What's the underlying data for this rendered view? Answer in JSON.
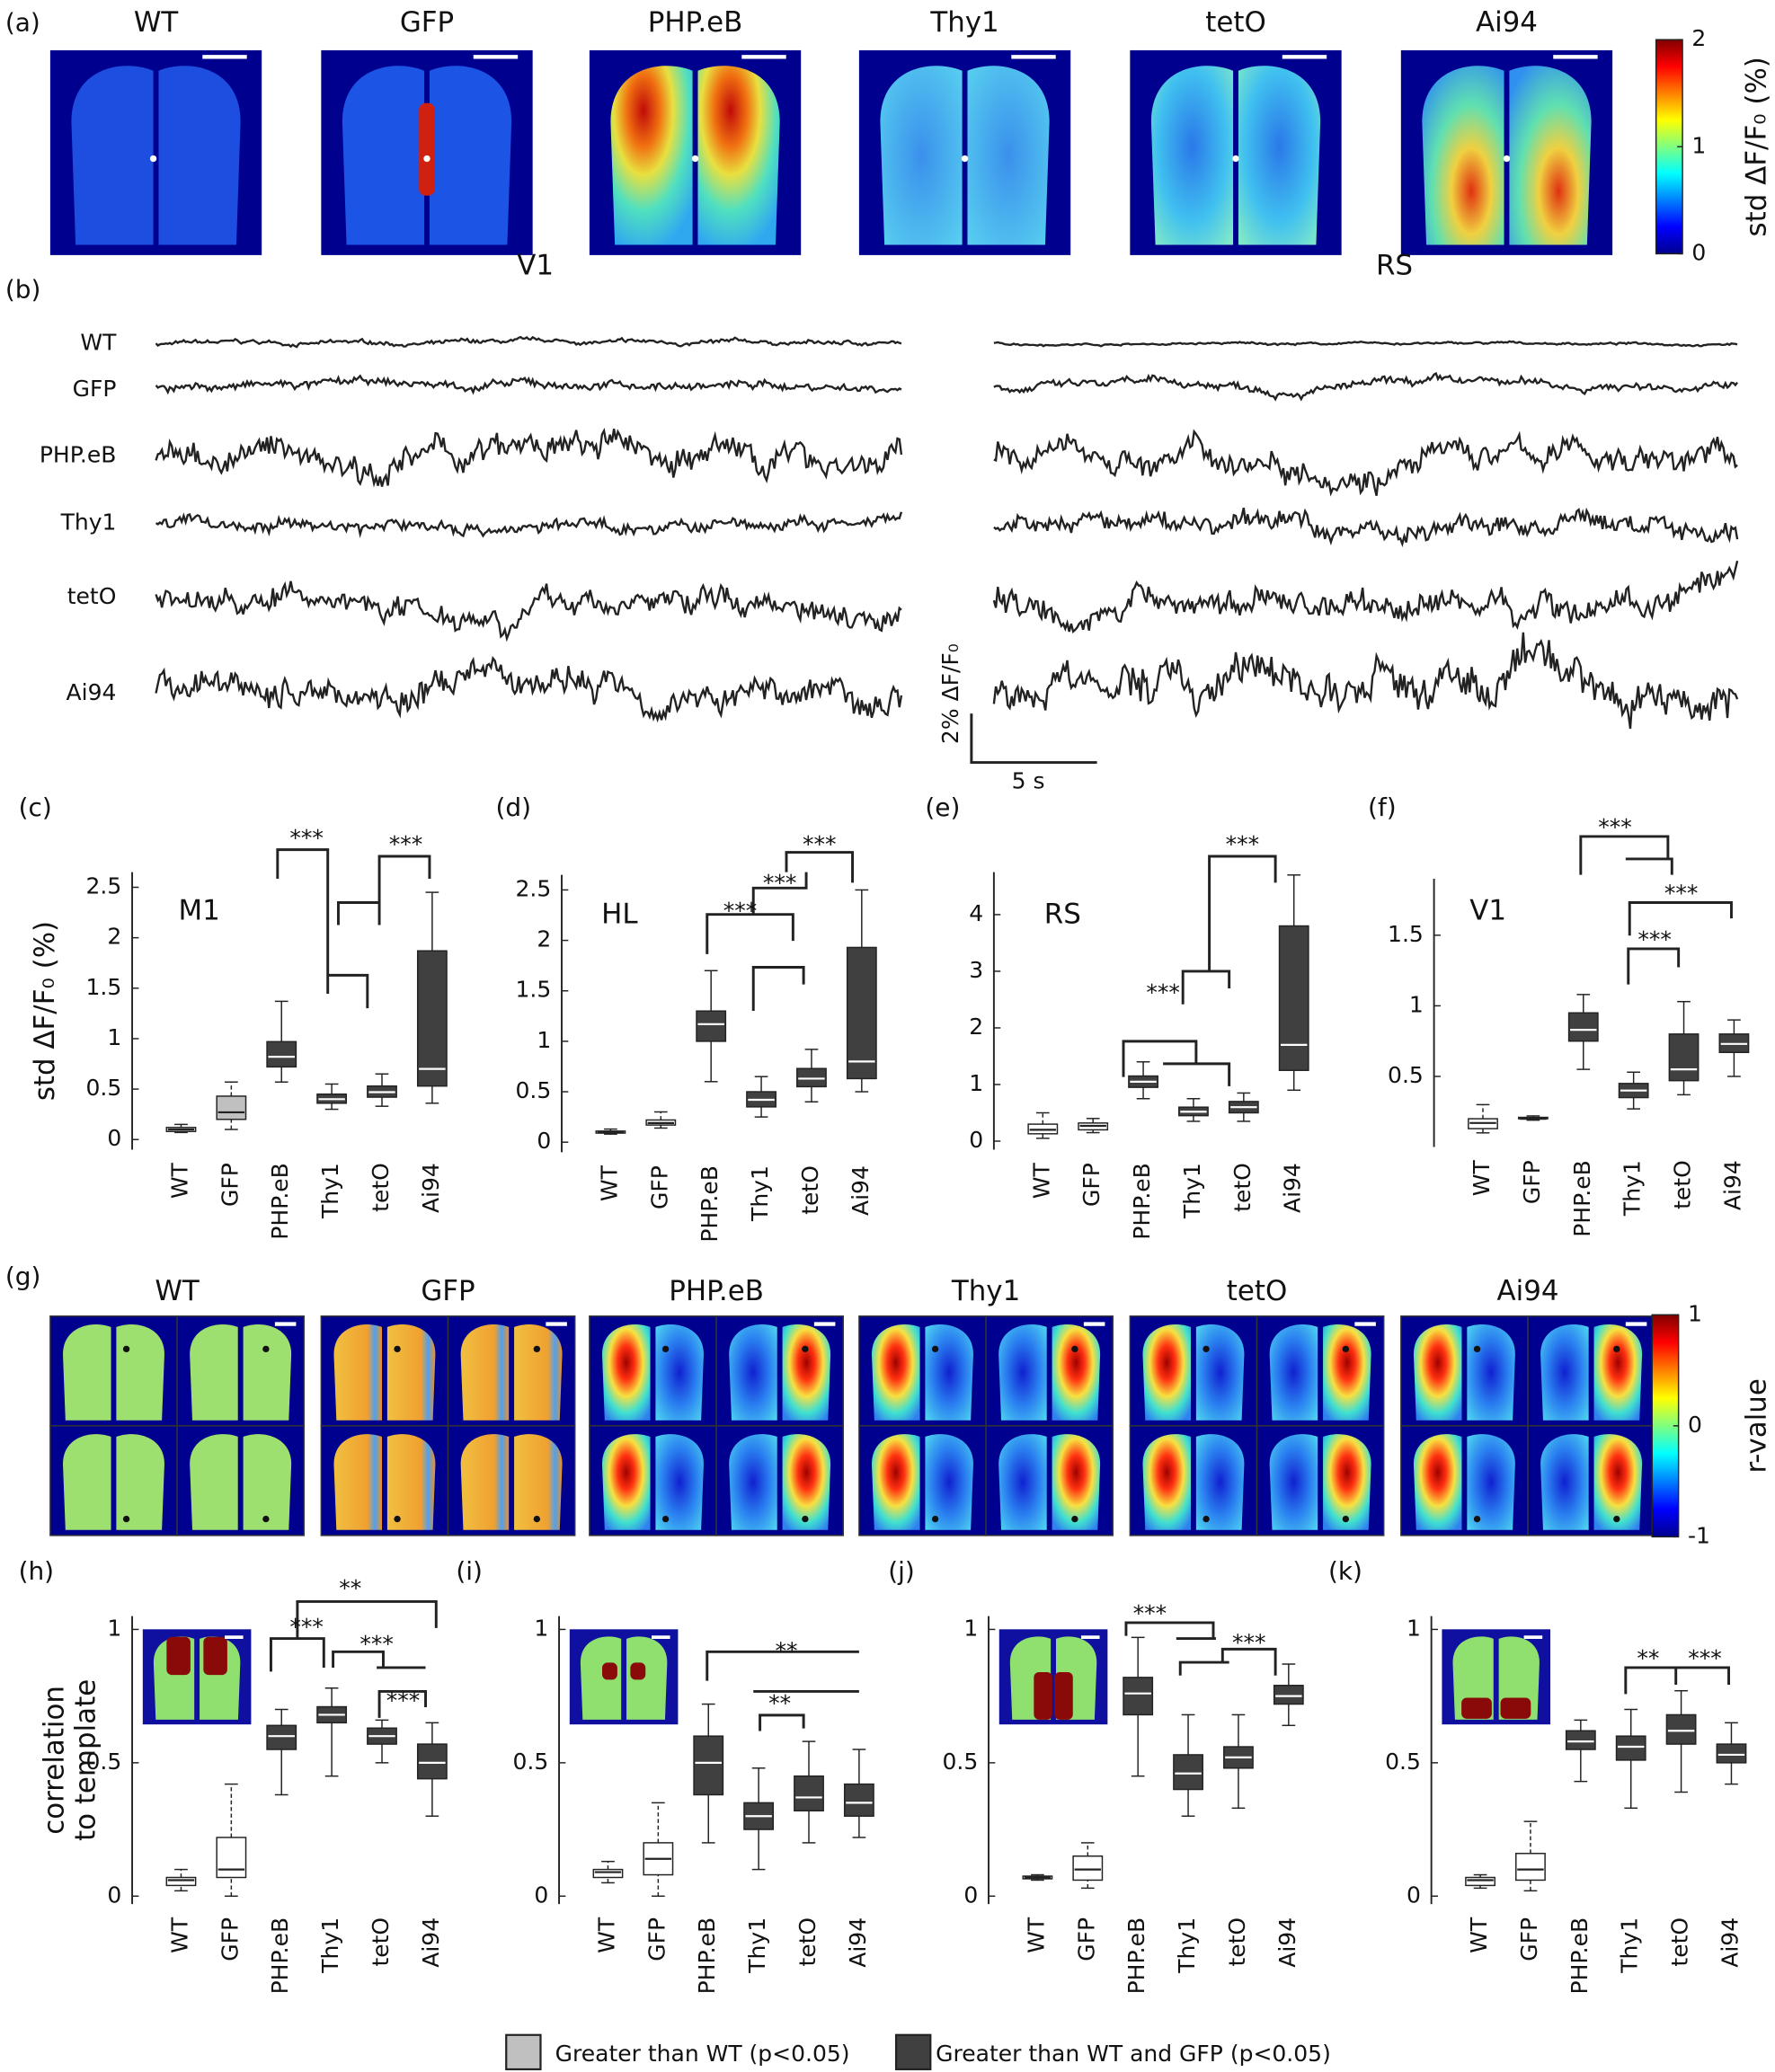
{
  "figure": {
    "panel_labels": [
      "(a)",
      "(b)",
      "(g)"
    ],
    "maps_a": {
      "titles": [
        "WT",
        "GFP",
        "PHP.eB",
        "Thy1",
        "tetO",
        "Ai94"
      ]
    },
    "colorbar_a": {
      "clim": [
        0,
        2
      ],
      "ticks": [
        0,
        1,
        2
      ],
      "label": "std ΔF/F₀ (%)"
    },
    "traces": {
      "regions": [
        "V1",
        "RS"
      ],
      "names": [
        "WT",
        "GFP",
        "PHP.eB",
        "Thy1",
        "tetO",
        "Ai94"
      ],
      "scale_y": "2% ΔF/F₀",
      "scale_x": "5 s"
    },
    "maps_g": {
      "titles": [
        "WT",
        "GFP",
        "PHP.eB",
        "Thy1",
        "tetO",
        "Ai94"
      ]
    },
    "colorbar_g": {
      "clim": [
        -1,
        1
      ],
      "ticks": [
        -1,
        0,
        1
      ],
      "label": "r-value"
    },
    "legend": [
      {
        "label": "Greater than WT (p<0.05)",
        "color": "#c0c0c0"
      },
      {
        "label": "Greater than WT and GFP (p<0.05)",
        "color": "#404040"
      }
    ]
  },
  "chart_data": [
    {
      "type": "box",
      "panel_label": "(c)",
      "label": "M1",
      "ylabel": [
        "std ΔF/F₀ (%)"
      ],
      "ylim": [
        -0.1,
        2.65
      ],
      "yticks": [
        0,
        0.5,
        1,
        1.5,
        2,
        2.5
      ],
      "categories": [
        "WT",
        "GFP",
        "PHP.eB",
        "Thy1",
        "tetO",
        "Ai94"
      ],
      "colors": [
        "#ffffff",
        "#c0c0c0",
        "#404040",
        "#404040",
        "#404040",
        "#404040"
      ],
      "low": [
        0.07,
        0.1,
        0.57,
        0.3,
        0.33,
        0.36
      ],
      "q1": [
        0.08,
        0.2,
        0.72,
        0.36,
        0.42,
        0.53
      ],
      "median": [
        0.1,
        0.27,
        0.82,
        0.4,
        0.47,
        0.7
      ],
      "q3": [
        0.12,
        0.43,
        0.97,
        0.45,
        0.53,
        1.87
      ],
      "high": [
        0.15,
        0.57,
        1.37,
        0.55,
        0.65,
        2.45
      ],
      "annotations": [
        "***",
        "***"
      ]
    },
    {
      "type": "box",
      "panel_label": "(d)",
      "label": "HL",
      "ylim": [
        -0.1,
        2.65
      ],
      "yticks": [
        0,
        0.5,
        1,
        1.5,
        2,
        2.5
      ],
      "categories": [
        "WT",
        "GFP",
        "PHP.eB",
        "Thy1",
        "tetO",
        "Ai94"
      ],
      "colors": [
        "#ffffff",
        "#ffffff",
        "#404040",
        "#404040",
        "#404040",
        "#404040"
      ],
      "low": [
        0.08,
        0.14,
        0.6,
        0.25,
        0.4,
        0.5
      ],
      "q1": [
        0.09,
        0.17,
        1.0,
        0.35,
        0.55,
        0.63
      ],
      "median": [
        0.1,
        0.19,
        1.17,
        0.42,
        0.63,
        0.8
      ],
      "q3": [
        0.11,
        0.22,
        1.3,
        0.5,
        0.73,
        1.93
      ],
      "high": [
        0.13,
        0.3,
        1.7,
        0.65,
        0.92,
        2.5
      ],
      "annotations": [
        "***",
        "***",
        "***"
      ]
    },
    {
      "type": "box",
      "panel_label": "(e)",
      "label": "RS",
      "ylim": [
        -0.15,
        4.75
      ],
      "yticks": [
        0,
        1,
        2,
        3,
        4
      ],
      "categories": [
        "WT",
        "GFP",
        "PHP.eB",
        "Thy1",
        "tetO",
        "Ai94"
      ],
      "colors": [
        "#ffffff",
        "#ffffff",
        "#404040",
        "#404040",
        "#404040",
        "#404040"
      ],
      "low": [
        0.05,
        0.15,
        0.75,
        0.35,
        0.35,
        0.9
      ],
      "q1": [
        0.13,
        0.2,
        0.95,
        0.45,
        0.5,
        1.25
      ],
      "median": [
        0.2,
        0.27,
        1.05,
        0.52,
        0.6,
        1.7
      ],
      "q3": [
        0.3,
        0.32,
        1.15,
        0.6,
        0.7,
        3.8
      ],
      "high": [
        0.5,
        0.4,
        1.4,
        0.75,
        0.85,
        4.7
      ],
      "annotations": [
        "***",
        "***"
      ]
    },
    {
      "type": "box",
      "panel_label": "(f)",
      "label": "V1",
      "ylim": [
        0,
        1.9
      ],
      "yticks": [
        0.5,
        1,
        1.5
      ],
      "categories": [
        "WT",
        "GFP",
        "PHP.eB",
        "Thy1",
        "tetO",
        "Ai94"
      ],
      "colors": [
        "#ffffff",
        "#ffffff",
        "#404040",
        "#404040",
        "#404040",
        "#404040"
      ],
      "low": [
        0.1,
        0.19,
        0.55,
        0.27,
        0.37,
        0.5
      ],
      "q1": [
        0.13,
        0.2,
        0.75,
        0.35,
        0.47,
        0.67
      ],
      "median": [
        0.17,
        0.2,
        0.83,
        0.4,
        0.55,
        0.73
      ],
      "q3": [
        0.2,
        0.21,
        0.95,
        0.45,
        0.8,
        0.8
      ],
      "high": [
        0.3,
        0.22,
        1.08,
        0.53,
        1.03,
        0.9
      ],
      "annotations": [
        "***",
        "***",
        "***"
      ]
    },
    {
      "type": "box",
      "panel_label": "(h)",
      "ylabel": [
        "correlation",
        "to template"
      ],
      "ylim": [
        -0.03,
        1.05
      ],
      "yticks": [
        0,
        0.5,
        1
      ],
      "categories": [
        "WT",
        "GFP",
        "PHP.eB",
        "Thy1",
        "tetO",
        "Ai94"
      ],
      "colors": [
        "#ffffff",
        "#ffffff",
        "#404040",
        "#404040",
        "#404040",
        "#404040"
      ],
      "low": [
        0.02,
        0,
        0.38,
        0.45,
        0.5,
        0.3
      ],
      "q1": [
        0.04,
        0.07,
        0.55,
        0.65,
        0.57,
        0.44
      ],
      "median": [
        0.06,
        0.1,
        0.6,
        0.68,
        0.6,
        0.5
      ],
      "q3": [
        0.07,
        0.22,
        0.64,
        0.71,
        0.63,
        0.57
      ],
      "high": [
        0.1,
        0.42,
        0.7,
        0.78,
        0.66,
        0.65
      ],
      "annotations": [
        "**",
        "***",
        "***",
        "***"
      ]
    },
    {
      "type": "box",
      "panel_label": "(i)",
      "ylim": [
        -0.03,
        1.05
      ],
      "yticks": [
        0,
        0.5,
        1
      ],
      "categories": [
        "WT",
        "GFP",
        "PHP.eB",
        "Thy1",
        "tetO",
        "Ai94"
      ],
      "colors": [
        "#ffffff",
        "#ffffff",
        "#404040",
        "#404040",
        "#404040",
        "#404040"
      ],
      "low": [
        0.05,
        0,
        0.2,
        0.1,
        0.2,
        0.22
      ],
      "q1": [
        0.07,
        0.08,
        0.38,
        0.25,
        0.32,
        0.3
      ],
      "median": [
        0.09,
        0.14,
        0.5,
        0.3,
        0.37,
        0.35
      ],
      "q3": [
        0.1,
        0.2,
        0.6,
        0.35,
        0.45,
        0.42
      ],
      "high": [
        0.13,
        0.35,
        0.72,
        0.48,
        0.58,
        0.55
      ],
      "annotations": [
        "**",
        "**"
      ]
    },
    {
      "type": "box",
      "panel_label": "(j)",
      "ylim": [
        -0.03,
        1.05
      ],
      "yticks": [
        0,
        0.5,
        1
      ],
      "categories": [
        "WT",
        "GFP",
        "PHP.eB",
        "Thy1",
        "tetO",
        "Ai94"
      ],
      "colors": [
        "#ffffff",
        "#ffffff",
        "#404040",
        "#404040",
        "#404040",
        "#404040"
      ],
      "low": [
        0.06,
        0.03,
        0.45,
        0.3,
        0.33,
        0.64
      ],
      "q1": [
        0.065,
        0.06,
        0.68,
        0.4,
        0.48,
        0.72
      ],
      "median": [
        0.07,
        0.1,
        0.76,
        0.46,
        0.52,
        0.75
      ],
      "q3": [
        0.075,
        0.15,
        0.82,
        0.53,
        0.56,
        0.79
      ],
      "high": [
        0.08,
        0.2,
        0.97,
        0.68,
        0.68,
        0.87
      ],
      "annotations": [
        "***",
        "***"
      ]
    },
    {
      "type": "box",
      "panel_label": "(k)",
      "ylim": [
        -0.03,
        1.05
      ],
      "yticks": [
        0,
        0.5,
        1
      ],
      "categories": [
        "WT",
        "GFP",
        "PHP.eB",
        "Thy1",
        "tetO",
        "Ai94"
      ],
      "colors": [
        "#ffffff",
        "#ffffff",
        "#404040",
        "#404040",
        "#404040",
        "#404040"
      ],
      "low": [
        0.03,
        0.02,
        0.43,
        0.33,
        0.39,
        0.42
      ],
      "q1": [
        0.04,
        0.06,
        0.55,
        0.51,
        0.57,
        0.5
      ],
      "median": [
        0.06,
        0.1,
        0.58,
        0.56,
        0.62,
        0.53
      ],
      "q3": [
        0.07,
        0.16,
        0.62,
        0.6,
        0.68,
        0.57
      ],
      "high": [
        0.08,
        0.28,
        0.66,
        0.7,
        0.77,
        0.65
      ],
      "annotations": [
        "**",
        "***"
      ]
    }
  ]
}
